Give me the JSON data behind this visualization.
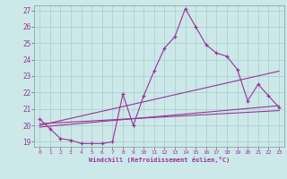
{
  "xlabel": "Windchill (Refroidissement éolien,°C)",
  "bg_color": "#cce8e8",
  "grid_color": "#aacccc",
  "line_color": "#993399",
  "xlim": [
    -0.5,
    23.5
  ],
  "ylim": [
    18.7,
    27.3
  ],
  "yticks": [
    19,
    20,
    21,
    22,
    23,
    24,
    25,
    26,
    27
  ],
  "xticks": [
    0,
    1,
    2,
    3,
    4,
    5,
    6,
    7,
    8,
    9,
    10,
    11,
    12,
    13,
    14,
    15,
    16,
    17,
    18,
    19,
    20,
    21,
    22,
    23
  ],
  "series1_x": [
    0,
    1,
    2,
    3,
    4,
    5,
    6,
    7,
    8,
    9,
    10,
    11,
    12,
    13,
    14,
    15,
    16,
    17,
    18,
    19,
    20,
    21,
    22,
    23
  ],
  "series1_y": [
    20.4,
    19.8,
    19.2,
    19.1,
    18.9,
    18.9,
    18.9,
    19.0,
    21.9,
    20.0,
    21.8,
    23.3,
    24.7,
    25.4,
    27.1,
    26.0,
    24.9,
    24.4,
    24.2,
    23.4,
    21.5,
    22.5,
    21.8,
    21.1
  ],
  "line1_x": [
    0,
    23
  ],
  "line1_y": [
    20.0,
    23.3
  ],
  "line2_x": [
    0,
    23
  ],
  "line2_y": [
    19.9,
    21.2
  ],
  "line3_x": [
    0,
    23
  ],
  "line3_y": [
    20.1,
    20.9
  ]
}
